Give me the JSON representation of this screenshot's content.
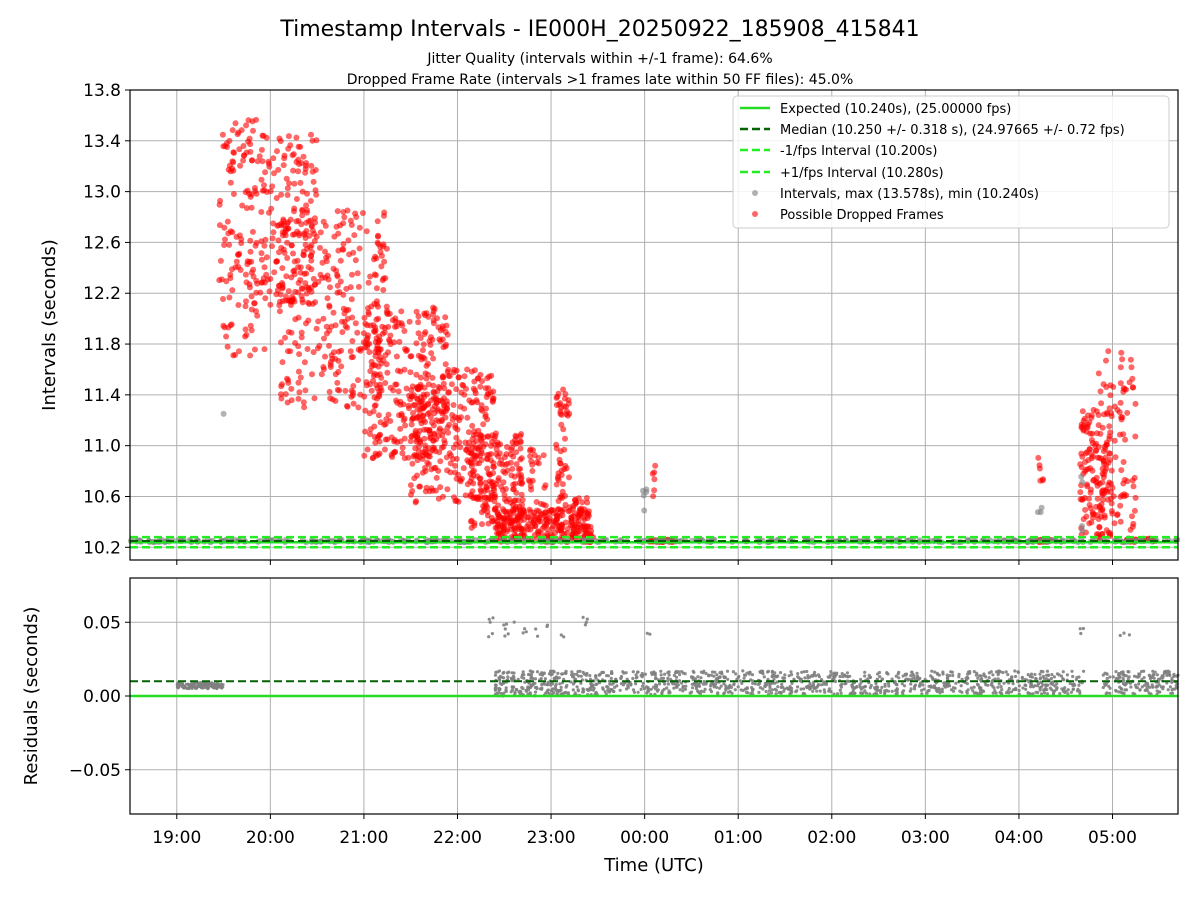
{
  "chart_data": {
    "type": "scatter",
    "title": "Timestamp Intervals - IE000H_20250922_185908_415841",
    "subtitle_1": "Jitter Quality (intervals within +/-1 frame): 64.6%",
    "subtitle_2": "Dropped Frame Rate (intervals >1 frames late within 50 FF files): 45.0%",
    "xlabel": "Time (UTC)",
    "x_tick_labels": [
      "19:00",
      "20:00",
      "21:00",
      "22:00",
      "23:00",
      "00:00",
      "01:00",
      "02:00",
      "03:00",
      "04:00",
      "05:00"
    ],
    "x_range_hours": [
      18.5,
      29.7
    ],
    "top_panel": {
      "ylabel": "Intervals (seconds)",
      "ylim": [
        10.1,
        13.8
      ],
      "y_ticks": [
        "10.2",
        "10.6",
        "11.0",
        "11.4",
        "11.8",
        "12.2",
        "12.6",
        "13.0",
        "13.4",
        "13.8"
      ],
      "expected": 10.24,
      "median": 10.25,
      "minus_fps": 10.2,
      "plus_fps": 10.28,
      "legend": {
        "expected": "Expected (10.240s), (25.00000 fps)",
        "median": "Median (10.250 +/- 0.318 s), (24.97665 +/- 0.72 fps)",
        "minus": "-1/fps Interval (10.200s)",
        "plus": "+1/fps Interval (10.280s)",
        "intervals": "Intervals, max (13.578s), min (10.240s)",
        "dropped": "Possible Dropped Frames"
      },
      "series": [
        {
          "name": "Possible Dropped Frames",
          "color": "#ff0000",
          "clusters": [
            {
              "t0": 19.45,
              "t1": 19.95,
              "min": 11.7,
              "max": 13.57,
              "n": 140
            },
            {
              "t0": 19.9,
              "t1": 20.5,
              "min": 12.1,
              "max": 13.45,
              "n": 160
            },
            {
              "t0": 20.1,
              "t1": 21.25,
              "min": 11.3,
              "max": 12.9,
              "n": 300
            },
            {
              "t0": 21.0,
              "t1": 21.9,
              "min": 10.9,
              "max": 12.1,
              "n": 280
            },
            {
              "t0": 21.5,
              "t1": 22.4,
              "min": 10.55,
              "max": 11.6,
              "n": 260
            },
            {
              "t0": 22.1,
              "t1": 22.7,
              "min": 10.3,
              "max": 11.1,
              "n": 200
            },
            {
              "t0": 22.4,
              "t1": 23.45,
              "min": 10.24,
              "max": 10.5,
              "n": 220
            },
            {
              "t0": 22.75,
              "t1": 22.95,
              "min": 10.3,
              "max": 11.0,
              "n": 30
            },
            {
              "t0": 23.05,
              "t1": 23.2,
              "min": 10.3,
              "max": 11.45,
              "n": 60
            },
            {
              "t0": 23.2,
              "t1": 23.4,
              "min": 10.26,
              "max": 10.6,
              "n": 40
            },
            {
              "t0": 24.05,
              "t1": 24.3,
              "min": 10.24,
              "max": 10.26,
              "n": 40
            },
            {
              "t0": 24.08,
              "t1": 24.12,
              "min": 10.6,
              "max": 10.9,
              "n": 6
            },
            {
              "t0": 28.2,
              "t1": 28.35,
              "min": 10.24,
              "max": 10.26,
              "n": 25
            },
            {
              "t0": 28.2,
              "t1": 28.26,
              "min": 10.7,
              "max": 10.92,
              "n": 6
            },
            {
              "t0": 28.65,
              "t1": 29.0,
              "min": 10.25,
              "max": 11.3,
              "n": 140
            },
            {
              "t0": 28.85,
              "t1": 29.25,
              "min": 10.3,
              "max": 11.75,
              "n": 90
            },
            {
              "t0": 29.15,
              "t1": 29.45,
              "min": 10.24,
              "max": 10.27,
              "n": 30
            }
          ]
        },
        {
          "name": "Intervals",
          "color": "#7f7f7f",
          "clusters": [
            {
              "t0": 18.5,
              "t1": 29.7,
              "min": 10.24,
              "max": 10.26,
              "n": 420
            },
            {
              "t0": 19.5,
              "t1": 19.51,
              "min": 11.23,
              "max": 11.25,
              "n": 1
            },
            {
              "t0": 23.98,
              "t1": 24.02,
              "min": 10.45,
              "max": 10.7,
              "n": 5
            },
            {
              "t0": 28.2,
              "t1": 28.25,
              "min": 10.4,
              "max": 10.55,
              "n": 3
            },
            {
              "t0": 28.65,
              "t1": 28.7,
              "min": 10.3,
              "max": 10.9,
              "n": 4
            }
          ]
        }
      ]
    },
    "bottom_panel": {
      "ylabel": "Residuals (seconds)",
      "ylim": [
        -0.08,
        0.08
      ],
      "y_ticks": [
        "0.05",
        "0.00",
        "−0.05"
      ],
      "expected": 0.0,
      "median": 0.01,
      "series": [
        {
          "name": "Residuals",
          "color": "#7f7f7f",
          "clusters": [
            {
              "t0": 19.0,
              "t1": 19.5,
              "min": 0.005,
              "max": 0.009,
              "n": 120
            },
            {
              "t0": 22.4,
              "t1": 23.5,
              "min": 0.0,
              "max": 0.017,
              "n": 260
            },
            {
              "t0": 23.5,
              "t1": 28.7,
              "min": 0.001,
              "max": 0.017,
              "n": 900
            },
            {
              "t0": 28.9,
              "t1": 29.7,
              "min": 0.001,
              "max": 0.017,
              "n": 160
            },
            {
              "t0": 22.3,
              "t1": 23.4,
              "min": 0.04,
              "max": 0.057,
              "n": 24
            },
            {
              "t0": 24.0,
              "t1": 24.1,
              "min": 0.041,
              "max": 0.043,
              "n": 2
            },
            {
              "t0": 28.65,
              "t1": 28.7,
              "min": 0.041,
              "max": 0.046,
              "n": 3
            },
            {
              "t0": 29.0,
              "t1": 29.3,
              "min": 0.041,
              "max": 0.043,
              "n": 3
            }
          ]
        }
      ]
    },
    "colors": {
      "expected": "#22dd22",
      "median": "#006400",
      "fps_bounds": "#22ee22",
      "dropped": "#ff0000",
      "intervals": "#7f7f7f",
      "grid": "#b0b0b0"
    }
  }
}
